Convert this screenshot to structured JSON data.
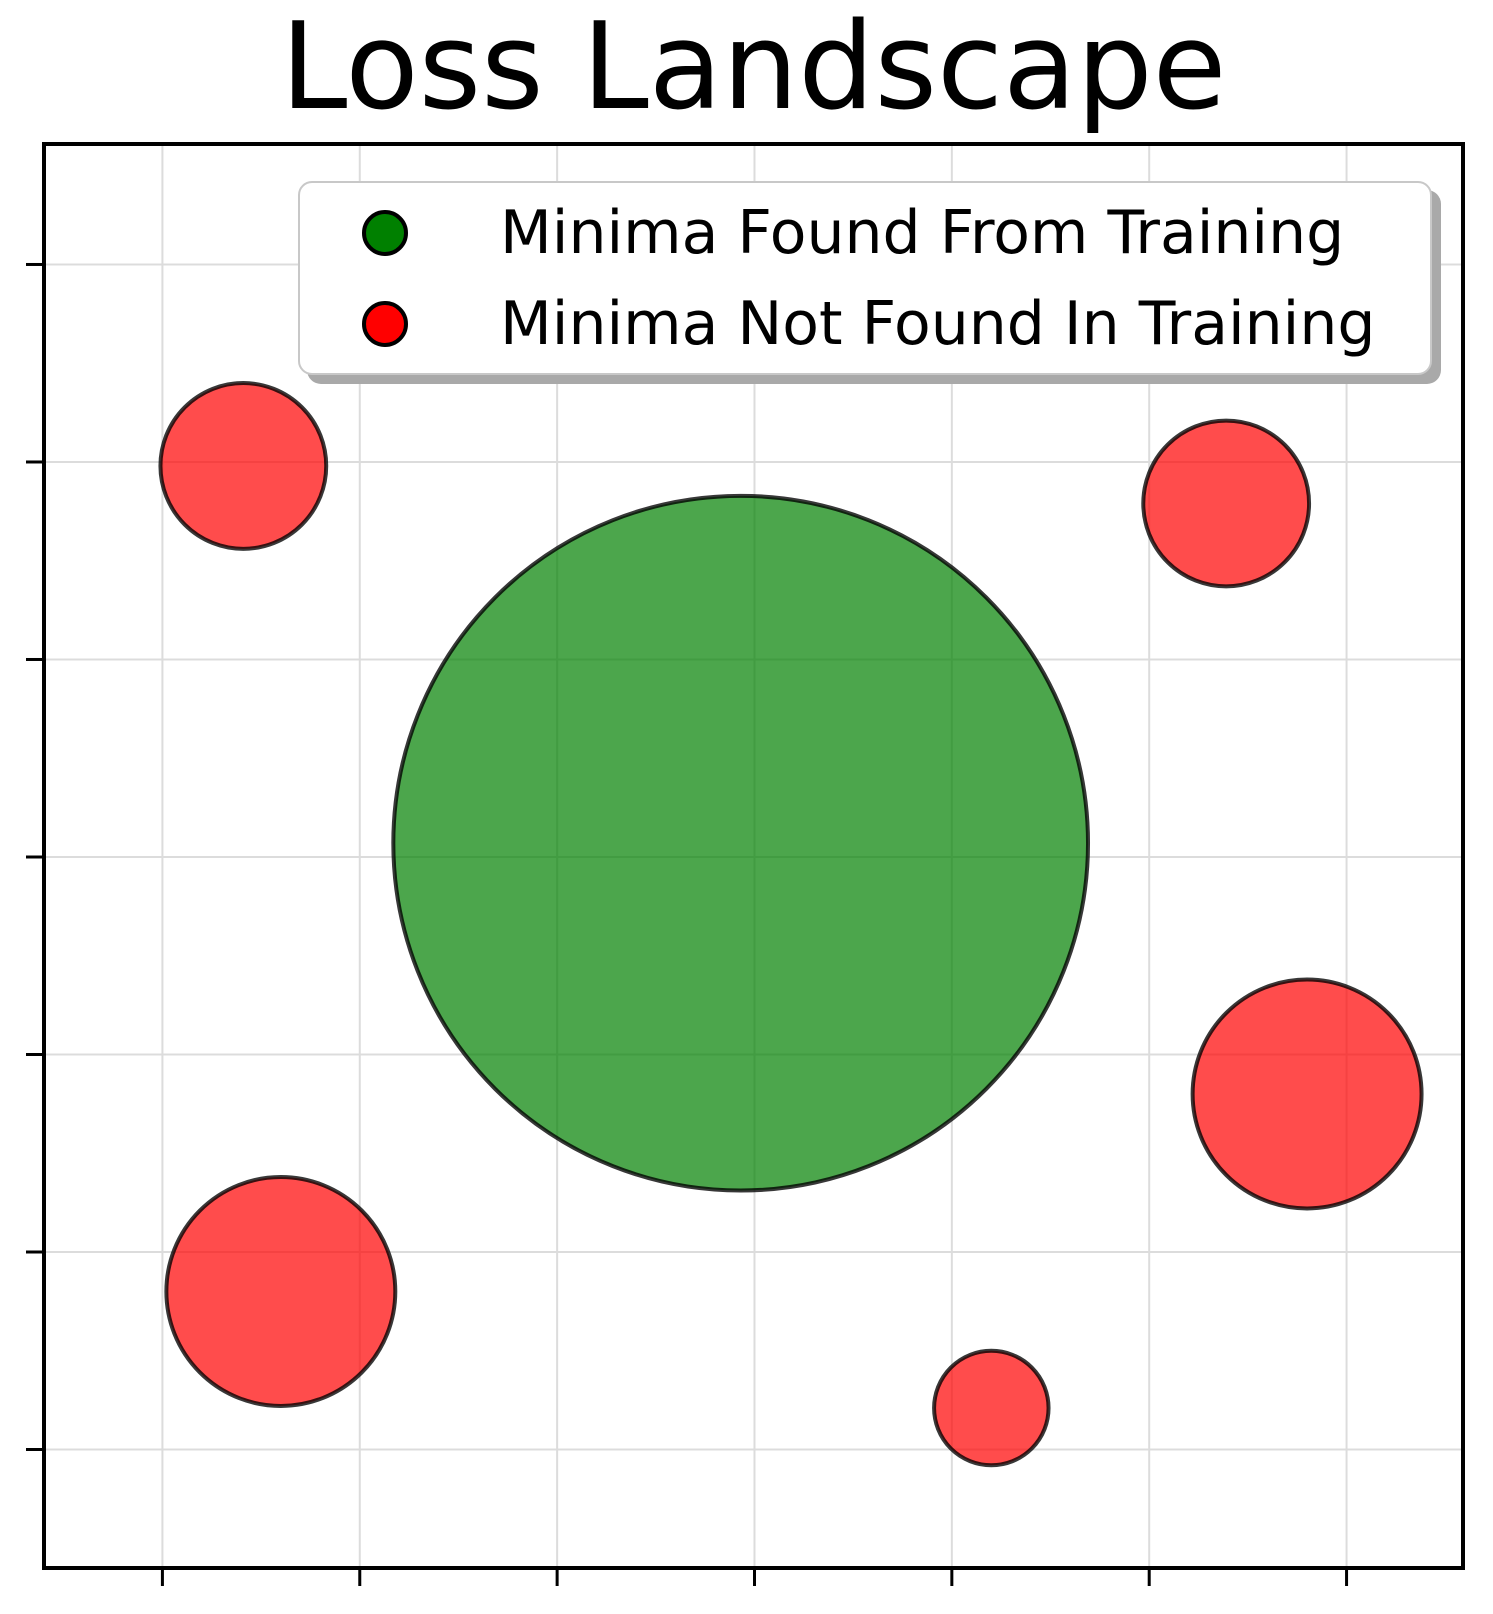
{
  "chart_data": {
    "type": "scatter",
    "title": "Loss Landscape",
    "xlabel": "",
    "ylabel": "",
    "xlim": [
      0.4,
      7.59
    ],
    "ylim": [
      0.4,
      7.61
    ],
    "xticks": [
      1,
      2,
      3,
      4,
      5,
      6,
      7
    ],
    "yticks": [
      1,
      2,
      3,
      4,
      5,
      6,
      7
    ],
    "xticklabels": [],
    "yticklabels": [],
    "tick_labels_visible": false,
    "grid": true,
    "grid_color": "#dcdcdc",
    "background_color": "#ffffff",
    "spine_color": "#000000",
    "marker_alpha": 0.7,
    "legend": {
      "position": "upper center",
      "border_color": "#c8c8c8",
      "shadow_color": "#a9a9a9",
      "entries": [
        {
          "label": "Minima Found From Training",
          "marker_color": "#008000"
        },
        {
          "label": "Minima Not Found In Training",
          "marker_color": "#ff0000"
        }
      ]
    },
    "series": [
      {
        "id": "minima-found",
        "name": "Minima Found From Training",
        "fill": "#008000",
        "fill_rendered_over_white": "#4ca64c",
        "edge": "#000000",
        "points": [
          {
            "x": 3.93,
            "y": 4.07,
            "r": 1.76
          }
        ]
      },
      {
        "id": "minima-not-found",
        "name": "Minima Not Found In Training",
        "fill": "#ff0000",
        "fill_rendered_over_white": "#ff4c4c",
        "edge": "#000000",
        "points": [
          {
            "x": 1.41,
            "y": 5.98,
            "r": 0.42
          },
          {
            "x": 6.39,
            "y": 5.79,
            "r": 0.42
          },
          {
            "x": 6.8,
            "y": 2.8,
            "r": 0.58
          },
          {
            "x": 1.6,
            "y": 1.8,
            "r": 0.58
          },
          {
            "x": 5.2,
            "y": 1.21,
            "r": 0.29
          }
        ]
      }
    ],
    "axis_note": "tick marks shown without numeric labels; data coordinates estimated assuming one unit per tick"
  }
}
